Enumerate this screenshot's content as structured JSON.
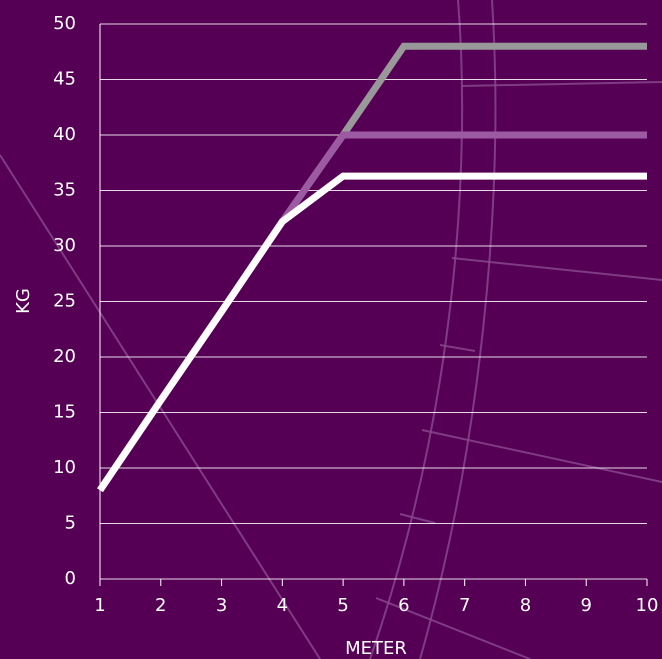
{
  "chart_data": {
    "type": "line",
    "x": [
      1,
      2,
      3,
      4,
      5,
      6,
      7,
      8,
      9,
      10
    ],
    "series": [
      {
        "color": "#999999",
        "values": [
          8,
          16.1,
          24.1,
          32.2,
          40,
          48,
          48,
          48,
          48,
          48
        ]
      },
      {
        "color": "#9c5aa3",
        "values": [
          8,
          16.1,
          24.1,
          32.2,
          40,
          40,
          40,
          40,
          40,
          40
        ]
      },
      {
        "color": "#ffffff",
        "values": [
          8,
          16.1,
          24.1,
          32.2,
          36.3,
          36.3,
          36.3,
          36.3,
          36.3,
          36.3
        ]
      }
    ],
    "xlim": [
      1,
      10
    ],
    "xticks": [
      1,
      2,
      3,
      4,
      5,
      6,
      7,
      8,
      9,
      10
    ],
    "ylim": [
      0,
      50
    ],
    "yticks": [
      0,
      5,
      10,
      15,
      20,
      25,
      30,
      35,
      40,
      45,
      50
    ],
    "xlabel": "METER",
    "ylabel": "KG",
    "grid": true
  }
}
